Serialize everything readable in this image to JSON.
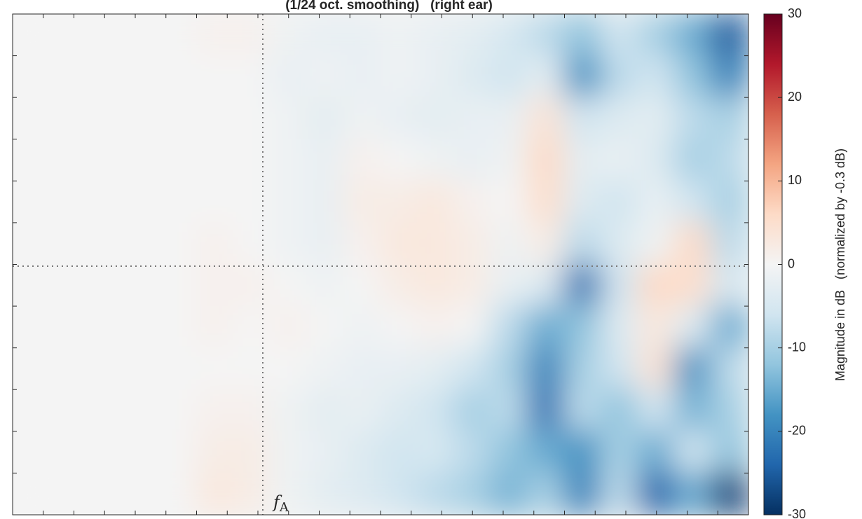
{
  "chart_data": {
    "type": "heatmap",
    "title": "(1/24 oct. smoothing)   (right ear)",
    "annotation": {
      "text": "f",
      "subscript": "A"
    },
    "colorbar_label": "Magnitude in dB   (normalized by -0.3 dB)",
    "clim": [
      -30,
      30
    ],
    "cticks": [
      30,
      20,
      10,
      0,
      -10,
      -20,
      -30
    ],
    "colormap": [
      "#053061",
      "#2166ac",
      "#4393c3",
      "#92c5de",
      "#d1e5f0",
      "#f4f4f4",
      "#fddbc7",
      "#f4a582",
      "#d6604d",
      "#b2182b",
      "#67001f"
    ],
    "z": [
      [
        0,
        0,
        0,
        0,
        0,
        1,
        1,
        -1,
        -2,
        -2,
        -1,
        -2,
        -3,
        -5,
        -8,
        -12,
        -6,
        -10,
        -15,
        -25
      ],
      [
        0,
        0,
        0,
        0,
        0,
        0,
        0,
        -2,
        -1,
        -2,
        -1,
        -2,
        -4,
        -6,
        -3,
        -18,
        -8,
        -6,
        -12,
        -20
      ],
      [
        0,
        0,
        0,
        0,
        0,
        0,
        0,
        -1,
        -3,
        -1,
        -2,
        -3,
        -2,
        -2,
        4,
        -6,
        -4,
        -3,
        -8,
        -10
      ],
      [
        0,
        0,
        0,
        0,
        0,
        0,
        0,
        -1,
        -2,
        1,
        0,
        -1,
        -2,
        -1,
        6,
        -3,
        -2,
        -4,
        -10,
        -8
      ],
      [
        0,
        0,
        0,
        0,
        0,
        0,
        0,
        -1,
        -2,
        2,
        2,
        3,
        1,
        0,
        5,
        -4,
        -6,
        -2,
        -6,
        -10
      ],
      [
        0,
        0,
        0,
        0,
        0,
        1,
        0,
        -1,
        -2,
        1,
        3,
        3,
        2,
        -1,
        2,
        -8,
        -4,
        -1,
        6,
        -8
      ],
      [
        0,
        0,
        0,
        0,
        0,
        1,
        1,
        0,
        -1,
        0,
        2,
        3,
        2,
        -2,
        -4,
        -22,
        -6,
        6,
        5,
        -5
      ],
      [
        0,
        0,
        0,
        0,
        0,
        1,
        0,
        1,
        0,
        -1,
        0,
        1,
        0,
        -8,
        -15,
        -12,
        -4,
        3,
        -4,
        -15
      ],
      [
        0,
        0,
        0,
        0,
        0,
        0,
        0,
        0,
        -1,
        -2,
        -2,
        -3,
        -6,
        -10,
        -20,
        -10,
        -6,
        4,
        -18,
        -8
      ],
      [
        0,
        0,
        0,
        0,
        0,
        1,
        1,
        -1,
        -3,
        -2,
        -4,
        -6,
        -10,
        -8,
        -22,
        -8,
        -12,
        -6,
        -14,
        -10
      ],
      [
        0,
        0,
        0,
        0,
        0,
        2,
        2,
        -1,
        -2,
        -4,
        -6,
        -5,
        -8,
        -12,
        -15,
        -18,
        -10,
        -15,
        -6,
        -12
      ],
      [
        0,
        0,
        0,
        0,
        0,
        3,
        2,
        -1,
        -3,
        -4,
        -6,
        -8,
        -10,
        -14,
        -10,
        -20,
        -8,
        -24,
        -15,
        -28
      ]
    ]
  }
}
